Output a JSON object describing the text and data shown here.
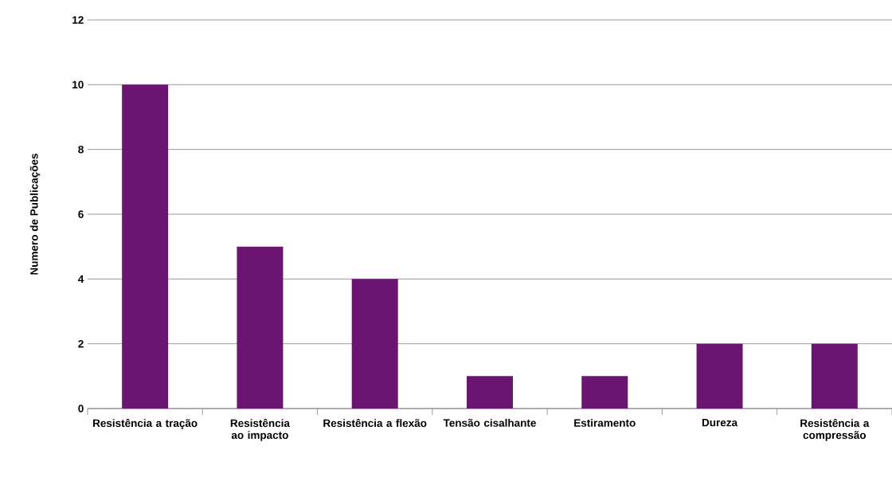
{
  "chart_data": {
    "type": "bar",
    "ylabel": "Numero de Publicações",
    "categories": [
      "Resistência a tração",
      "Resistência ao impacto",
      "Resistência a flexão",
      "Tensão cisalhante",
      "Estiramento",
      "Dureza",
      "Resistência a compressão"
    ],
    "values": [
      10,
      5,
      4,
      1,
      1,
      2,
      2
    ],
    "color": "#6a1670",
    "ylim": [
      0,
      12
    ],
    "yticks": [
      0,
      2,
      4,
      6,
      8,
      10,
      12
    ],
    "grid": "y"
  }
}
